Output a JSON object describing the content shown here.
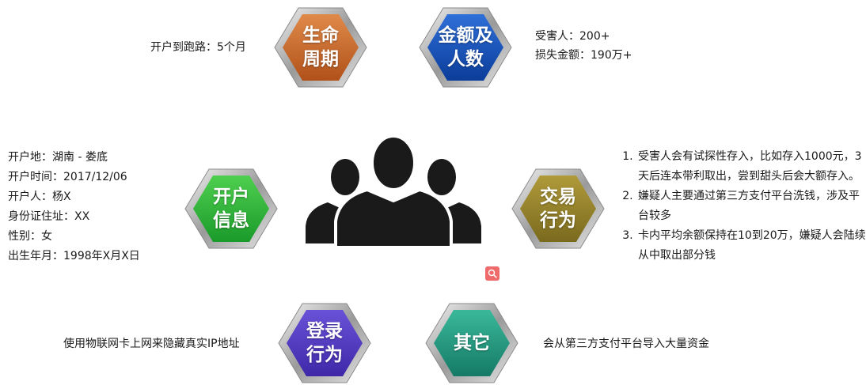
{
  "nodes": {
    "lifecycle": {
      "label": "生命\n周期",
      "color_light": "#e08a4a",
      "color_dark": "#b0511a",
      "info": "开户到跑路：5个月"
    },
    "amount": {
      "label": "金额及\n人数",
      "color_light": "#2f6fd8",
      "color_dark": "#0b3d9a",
      "info": [
        "受害人：200+",
        "损失金额：190万+"
      ]
    },
    "account": {
      "label": "开户\n信息",
      "color_light": "#4fcf4f",
      "color_dark": "#1a9a2a",
      "info": [
        "开户地：湖南 - 娄底",
        "开户时间：2017/12/06",
        "开户人：杨X",
        "身份证住址：XX",
        "性别：女",
        "出生年月：1998年X月X日"
      ]
    },
    "transaction": {
      "label": "交易\n行为",
      "color_light": "#b09a3a",
      "color_dark": "#7a6a1e",
      "info": [
        "受害人会有试探性存入，比如存入1000元，3天后连本带利取出，尝到甜头后会大额存入。",
        "嫌疑人主要通过第三方支付平台洗钱，涉及平台较多",
        "卡内平均余额保持在10到20万，嫌疑人会陆续从中取出部分钱"
      ]
    },
    "login": {
      "label": "登录\n行为",
      "color_light": "#6a52d8",
      "color_dark": "#3f28a8",
      "info": "使用物联网卡上网来隐藏真实IP地址"
    },
    "other": {
      "label": "其它",
      "color_light": "#3ab89a",
      "color_dark": "#157a66",
      "info": "会从第三方支付平台导入大量资金"
    }
  },
  "center_icon": "people-group-icon",
  "search_icon_color": "#ef6b6b"
}
